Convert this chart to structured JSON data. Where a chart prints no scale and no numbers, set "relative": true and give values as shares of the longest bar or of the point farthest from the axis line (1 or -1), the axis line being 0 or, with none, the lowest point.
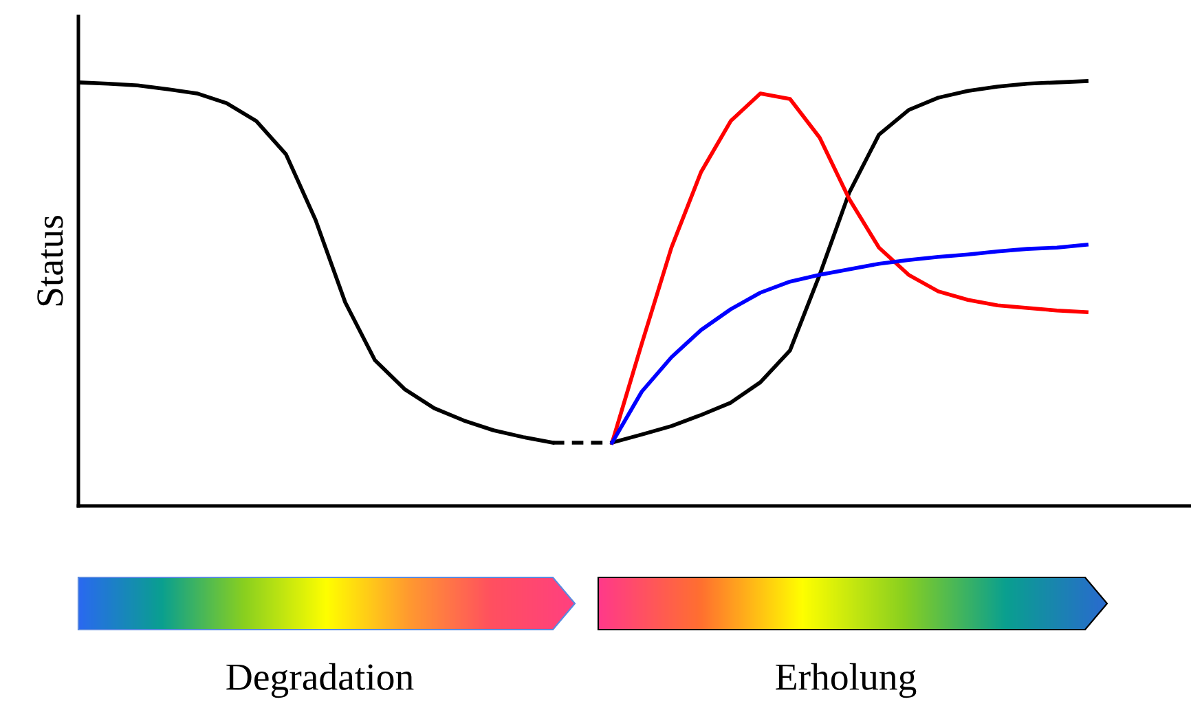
{
  "chart_data": {
    "type": "line",
    "relative": true,
    "ylabel": "Status",
    "categories": [
      null,
      null,
      null,
      null,
      null,
      null,
      null,
      null,
      null,
      null,
      null,
      null,
      null,
      null,
      null,
      null,
      null,
      null,
      null,
      null,
      null,
      null,
      null,
      null,
      null,
      null,
      null,
      null,
      null,
      null,
      null,
      null,
      null,
      null,
      null
    ],
    "series": [
      {
        "color": "#000000",
        "line_style": "solid",
        "values": [
          0.997,
          0.994,
          0.99,
          0.981,
          0.971,
          0.948,
          0.906,
          0.828,
          0.673,
          0.479,
          0.343,
          0.275,
          0.23,
          0.201,
          0.178,
          0.162,
          0.149,
          null,
          null,
          null,
          null,
          null,
          null,
          null,
          null,
          null,
          null,
          null,
          null,
          null,
          null,
          null,
          null,
          null,
          null
        ]
      },
      {
        "color": "#000000",
        "line_style": "dashed",
        "values": [
          null,
          null,
          null,
          null,
          null,
          null,
          null,
          null,
          null,
          null,
          null,
          null,
          null,
          null,
          null,
          null,
          0.149,
          0.149,
          0.149,
          null,
          null,
          null,
          null,
          null,
          null,
          null,
          null,
          null,
          null,
          null,
          null,
          null,
          null,
          null,
          null
        ]
      },
      {
        "color": "#000000",
        "line_style": "solid",
        "values": [
          null,
          null,
          null,
          null,
          null,
          null,
          null,
          null,
          null,
          null,
          null,
          null,
          null,
          null,
          null,
          null,
          null,
          null,
          0.149,
          0.168,
          0.188,
          0.214,
          0.243,
          0.291,
          0.366,
          0.544,
          0.738,
          0.874,
          0.932,
          0.961,
          0.977,
          0.987,
          0.994,
          0.997,
          1.0
        ]
      },
      {
        "color": "#ff0000",
        "line_style": "solid",
        "values": [
          null,
          null,
          null,
          null,
          null,
          null,
          null,
          null,
          null,
          null,
          null,
          null,
          null,
          null,
          null,
          null,
          null,
          null,
          0.149,
          0.382,
          0.608,
          0.786,
          0.906,
          0.971,
          0.958,
          0.867,
          0.722,
          0.608,
          0.544,
          0.505,
          0.485,
          0.472,
          0.466,
          0.46,
          0.456
        ]
      },
      {
        "color": "#0000ff",
        "line_style": "solid",
        "values": [
          null,
          null,
          null,
          null,
          null,
          null,
          null,
          null,
          null,
          null,
          null,
          null,
          null,
          null,
          null,
          null,
          null,
          null,
          0.149,
          0.269,
          0.35,
          0.414,
          0.463,
          0.502,
          0.528,
          0.544,
          0.557,
          0.57,
          0.579,
          0.586,
          0.592,
          0.599,
          0.605,
          0.608,
          0.615
        ]
      }
    ],
    "annotations": [
      "Degradation",
      "Erholung"
    ],
    "legend": false
  }
}
